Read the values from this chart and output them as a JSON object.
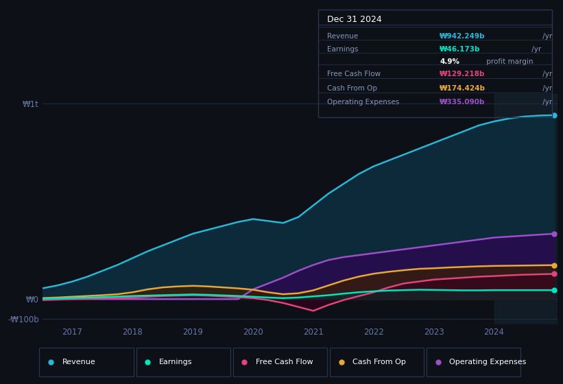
{
  "background_color": "#0d1117",
  "plot_bg_color": "#111827",
  "title_box_bg": "#0a0e14",
  "title_box_border": "#2a3550",
  "grid_color": "#1e2d45",
  "tick_color": "#6677aa",
  "y_ticks": [
    1000,
    0,
    -100
  ],
  "y_tick_labels": [
    "₩1t",
    "₩0",
    "-₩100b"
  ],
  "x_ticks": [
    2017,
    2018,
    2019,
    2020,
    2021,
    2022,
    2023,
    2024
  ],
  "x_tick_labels": [
    "2017",
    "2018",
    "2019",
    "2020",
    "2021",
    "2022",
    "2023",
    "2024"
  ],
  "legend": [
    {
      "label": "Revenue",
      "color": "#2ab7d6"
    },
    {
      "label": "Earnings",
      "color": "#00e5c0"
    },
    {
      "label": "Free Cash Flow",
      "color": "#e0457b"
    },
    {
      "label": "Cash From Op",
      "color": "#e8a838"
    },
    {
      "label": "Operating Expenses",
      "color": "#9b4fc8"
    }
  ],
  "info_box": {
    "date": "Dec 31 2024",
    "rows": [
      {
        "label": "Revenue",
        "value": "₩942.249b",
        "unit": " /yr",
        "value_color": "#2ab7d6"
      },
      {
        "label": "Earnings",
        "value": "₩46.173b",
        "unit": " /yr",
        "value_color": "#00e5c0"
      },
      {
        "label": "",
        "value": "4.9%",
        "unit": " profit margin",
        "value_color": "#ffffff"
      },
      {
        "label": "Free Cash Flow",
        "value": "₩129.218b",
        "unit": " /yr",
        "value_color": "#e0457b"
      },
      {
        "label": "Cash From Op",
        "value": "₩174.424b",
        "unit": " /yr",
        "value_color": "#e8a838"
      },
      {
        "label": "Operating Expenses",
        "value": "₩335.090b",
        "unit": " /yr",
        "value_color": "#9b4fc8"
      }
    ]
  },
  "series": {
    "x": [
      2016.5,
      2016.75,
      2017.0,
      2017.25,
      2017.5,
      2017.75,
      2018.0,
      2018.25,
      2018.5,
      2018.75,
      2019.0,
      2019.25,
      2019.5,
      2019.75,
      2020.0,
      2020.25,
      2020.5,
      2020.75,
      2021.0,
      2021.25,
      2021.5,
      2021.75,
      2022.0,
      2022.25,
      2022.5,
      2022.75,
      2023.0,
      2023.25,
      2023.5,
      2023.75,
      2024.0,
      2024.25,
      2024.5,
      2024.75,
      2025.0
    ],
    "revenue": [
      55,
      70,
      90,
      115,
      145,
      175,
      210,
      245,
      275,
      305,
      335,
      355,
      375,
      395,
      410,
      400,
      390,
      420,
      480,
      540,
      590,
      640,
      680,
      710,
      740,
      770,
      800,
      830,
      860,
      890,
      910,
      925,
      935,
      940,
      942
    ],
    "earnings": [
      2,
      4,
      6,
      8,
      10,
      13,
      16,
      18,
      20,
      22,
      24,
      22,
      19,
      16,
      12,
      8,
      5,
      8,
      14,
      20,
      28,
      35,
      40,
      44,
      46,
      48,
      47,
      46,
      45,
      45,
      46,
      46,
      46,
      46,
      46
    ],
    "free_cash_flow": [
      -5,
      -3,
      0,
      2,
      4,
      6,
      8,
      12,
      16,
      18,
      20,
      18,
      14,
      10,
      5,
      -5,
      -20,
      -40,
      -60,
      -30,
      -5,
      15,
      35,
      60,
      80,
      90,
      100,
      105,
      110,
      115,
      118,
      122,
      125,
      127,
      129
    ],
    "cash_from_op": [
      5,
      8,
      12,
      16,
      20,
      25,
      35,
      50,
      60,
      65,
      68,
      65,
      60,
      55,
      48,
      35,
      25,
      30,
      45,
      70,
      95,
      115,
      130,
      140,
      148,
      155,
      158,
      162,
      165,
      168,
      170,
      171,
      172,
      173,
      174
    ],
    "operating_expenses": [
      0,
      0,
      0,
      0,
      0,
      0,
      0,
      0,
      0,
      0,
      0,
      0,
      0,
      0,
      50,
      80,
      110,
      145,
      175,
      200,
      215,
      225,
      235,
      245,
      255,
      265,
      275,
      285,
      295,
      305,
      315,
      320,
      325,
      330,
      335
    ]
  }
}
